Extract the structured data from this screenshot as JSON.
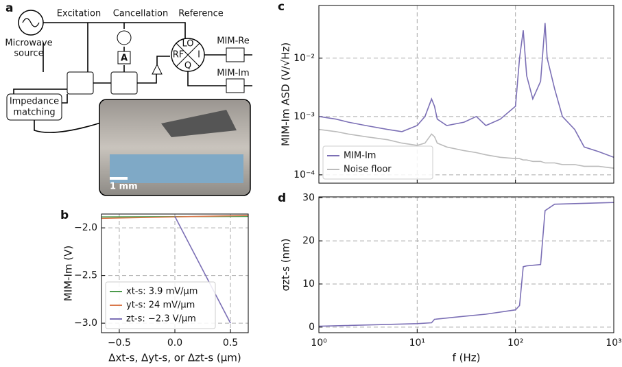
{
  "diagram": {
    "panel_label": "a",
    "source": [
      "Microwave",
      "source"
    ],
    "excitation": "Excitation",
    "cancellation": "Cancellation",
    "reference": "Reference",
    "lo": "LO",
    "rf": "RF",
    "i": "I",
    "q": "Q",
    "amp": "A",
    "mim_re": "MIM-Re",
    "mim_im": "MIM-Im",
    "impedance": [
      "Impedance",
      "matching"
    ],
    "scale": "1 mm"
  },
  "chart_data": [
    {
      "type": "line",
      "panel_label": "b",
      "ylabel": "MIM-Im (V)",
      "xlabel": "Δxt-s, Δyt-s, or Δzt-s (μm)",
      "xlim": [
        -0.66,
        0.66
      ],
      "ylim": [
        -3.1,
        -1.855
      ],
      "xticks": [
        {
          "value": -0.5,
          "label": "−0.5"
        },
        {
          "value": 0,
          "label": "0.0"
        },
        {
          "value": 0.5,
          "label": "0.5"
        }
      ],
      "yticks": [
        {
          "value": -2.0,
          "label": "−2.0"
        },
        {
          "value": -2.5,
          "label": "−2.5"
        },
        {
          "value": -3.0,
          "label": "−3.0"
        }
      ],
      "grid": true,
      "legend": "lower left",
      "series": [
        {
          "name": "xt-s: 3.9 mV/μm",
          "color": "#4c9a4c",
          "x": [
            -0.66,
            0.66
          ],
          "values": [
            -1.885,
            -1.88
          ]
        },
        {
          "name": "yt-s: 24 mV/μm",
          "color": "#d9774a",
          "x": [
            -0.66,
            0.66
          ],
          "values": [
            -1.9,
            -1.87
          ]
        },
        {
          "name": "zt-s: −2.3 V/μm",
          "color": "#7b6fb5",
          "x": [
            0,
            0.5
          ],
          "values": [
            -1.88,
            -3.0
          ]
        }
      ]
    },
    {
      "type": "line",
      "panel_label": "c",
      "ylabel": "MIM-Im ASD (V/√Hz)",
      "log_x": true,
      "log_y": true,
      "xlim": [
        1,
        1000
      ],
      "ylim": [
        7.2e-05,
        0.08
      ],
      "show_xtick_labels": false,
      "xticks": [
        1,
        10,
        100,
        1000
      ],
      "yticks": [
        {
          "value": 0.0001,
          "label": "10⁻⁴"
        },
        {
          "value": 0.001,
          "label": "10⁻³"
        },
        {
          "value": 0.01,
          "label": "10⁻²"
        }
      ],
      "grid": true,
      "legend": "lower left",
      "x": [
        1,
        1.5,
        2,
        3,
        5,
        7,
        10,
        12,
        14,
        15,
        16,
        20,
        30,
        40,
        50,
        70,
        100,
        110,
        120,
        130,
        150,
        180,
        200,
        210,
        250,
        300,
        400,
        500,
        700,
        1000
      ],
      "series": [
        {
          "name": "MIM-Im",
          "color": "#7b6fb5",
          "values": [
            0.001,
            0.0009,
            0.0008,
            0.0007,
            0.0006,
            0.00055,
            0.0007,
            0.001,
            0.002,
            0.0015,
            0.0009,
            0.0007,
            0.0008,
            0.001,
            0.0007,
            0.0009,
            0.0015,
            0.01,
            0.03,
            0.005,
            0.002,
            0.004,
            0.04,
            0.01,
            0.003,
            0.001,
            0.0006,
            0.0003,
            0.00025,
            0.0002
          ]
        },
        {
          "name": "Noise floor",
          "color": "#bbbbbb",
          "values": [
            0.0006,
            0.00055,
            0.0005,
            0.00045,
            0.0004,
            0.00035,
            0.00032,
            0.00035,
            0.0005,
            0.00045,
            0.00035,
            0.0003,
            0.00026,
            0.00024,
            0.00022,
            0.0002,
            0.00019,
            0.00019,
            0.00018,
            0.00018,
            0.00017,
            0.00017,
            0.00016,
            0.00016,
            0.00016,
            0.00015,
            0.00015,
            0.00014,
            0.00014,
            0.00013
          ]
        }
      ]
    },
    {
      "type": "line",
      "panel_label": "d",
      "ylabel": "σzt-s (nm)",
      "xlabel": "f (Hz)",
      "log_x": true,
      "xlim": [
        1,
        1000
      ],
      "ylim": [
        -1.3,
        30.2
      ],
      "show_xtick_labels": true,
      "xticks": [
        {
          "value": 1,
          "label": "10⁰"
        },
        {
          "value": 10,
          "label": "10¹"
        },
        {
          "value": 100,
          "label": "10²"
        },
        {
          "value": 1000,
          "label": "10³"
        }
      ],
      "yticks": [
        0,
        10,
        20,
        30
      ],
      "grid": true,
      "x": [
        1,
        10,
        14,
        15,
        30,
        50,
        100,
        110,
        120,
        130,
        180,
        200,
        250,
        1000
      ],
      "series": [
        {
          "color": "#7b6fb5",
          "values": [
            0.2,
            0.8,
            1.0,
            1.8,
            2.5,
            3.0,
            4.0,
            5.0,
            14.0,
            14.2,
            14.5,
            27.0,
            28.5,
            28.9
          ]
        }
      ]
    }
  ]
}
